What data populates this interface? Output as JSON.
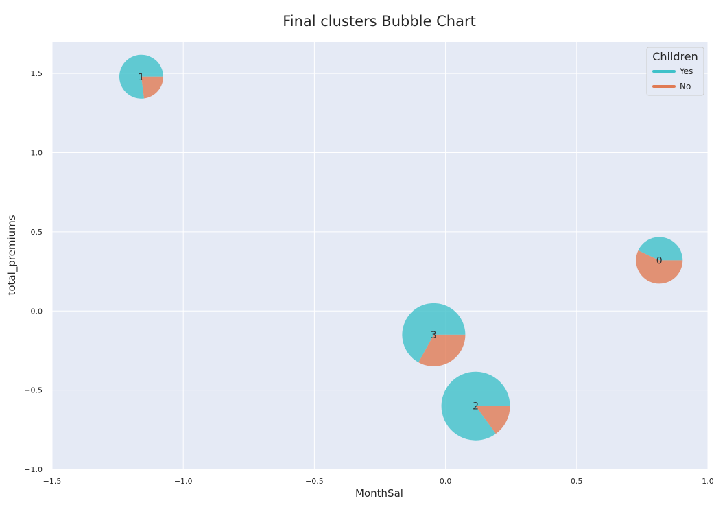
{
  "chart_data": {
    "type": "scatter",
    "subtype": "bubble-pie",
    "title": "Final clusters Bubble Chart",
    "xlabel": "MonthSal",
    "ylabel": "total_premiums",
    "xlim": [
      -1.5,
      1.0
    ],
    "ylim": [
      -1.0,
      1.7
    ],
    "xticks": [
      -1.5,
      -1.0,
      -0.5,
      0.0,
      0.5,
      1.0
    ],
    "xtick_labels": [
      "−1.5",
      "−1.0",
      "−0.5",
      "0.0",
      "0.5",
      "1.0"
    ],
    "yticks": [
      -1.0,
      -0.5,
      0.0,
      0.5,
      1.0,
      1.5
    ],
    "ytick_labels": [
      "−1.0",
      "−0.5",
      "0.0",
      "0.5",
      "1.0",
      "1.5"
    ],
    "grid": true,
    "legend": {
      "title": "Children",
      "position": "top-right",
      "entries": [
        {
          "label": "Yes",
          "color": "#3fc1c9"
        },
        {
          "label": "No",
          "color": "#e07b54"
        }
      ]
    },
    "slice_order": [
      "Yes",
      "No"
    ],
    "clusters": [
      {
        "label": "0",
        "x": 0.815,
        "y": 0.32,
        "yes_share": 0.43,
        "no_share": 0.57
      },
      {
        "label": "1",
        "x": -1.16,
        "y": 1.48,
        "yes_share": 0.77,
        "no_share": 0.23
      },
      {
        "label": "2",
        "x": 0.115,
        "y": -0.6,
        "yes_share": 0.85,
        "no_share": 0.15
      },
      {
        "label": "3",
        "x": -0.045,
        "y": -0.15,
        "yes_share": 0.67,
        "no_share": 0.33
      }
    ],
    "colors": {
      "yes": "#3fc1c9",
      "no": "#e07b54",
      "plot_bg": "#e5eaf5",
      "grid": "#ffffff"
    }
  }
}
